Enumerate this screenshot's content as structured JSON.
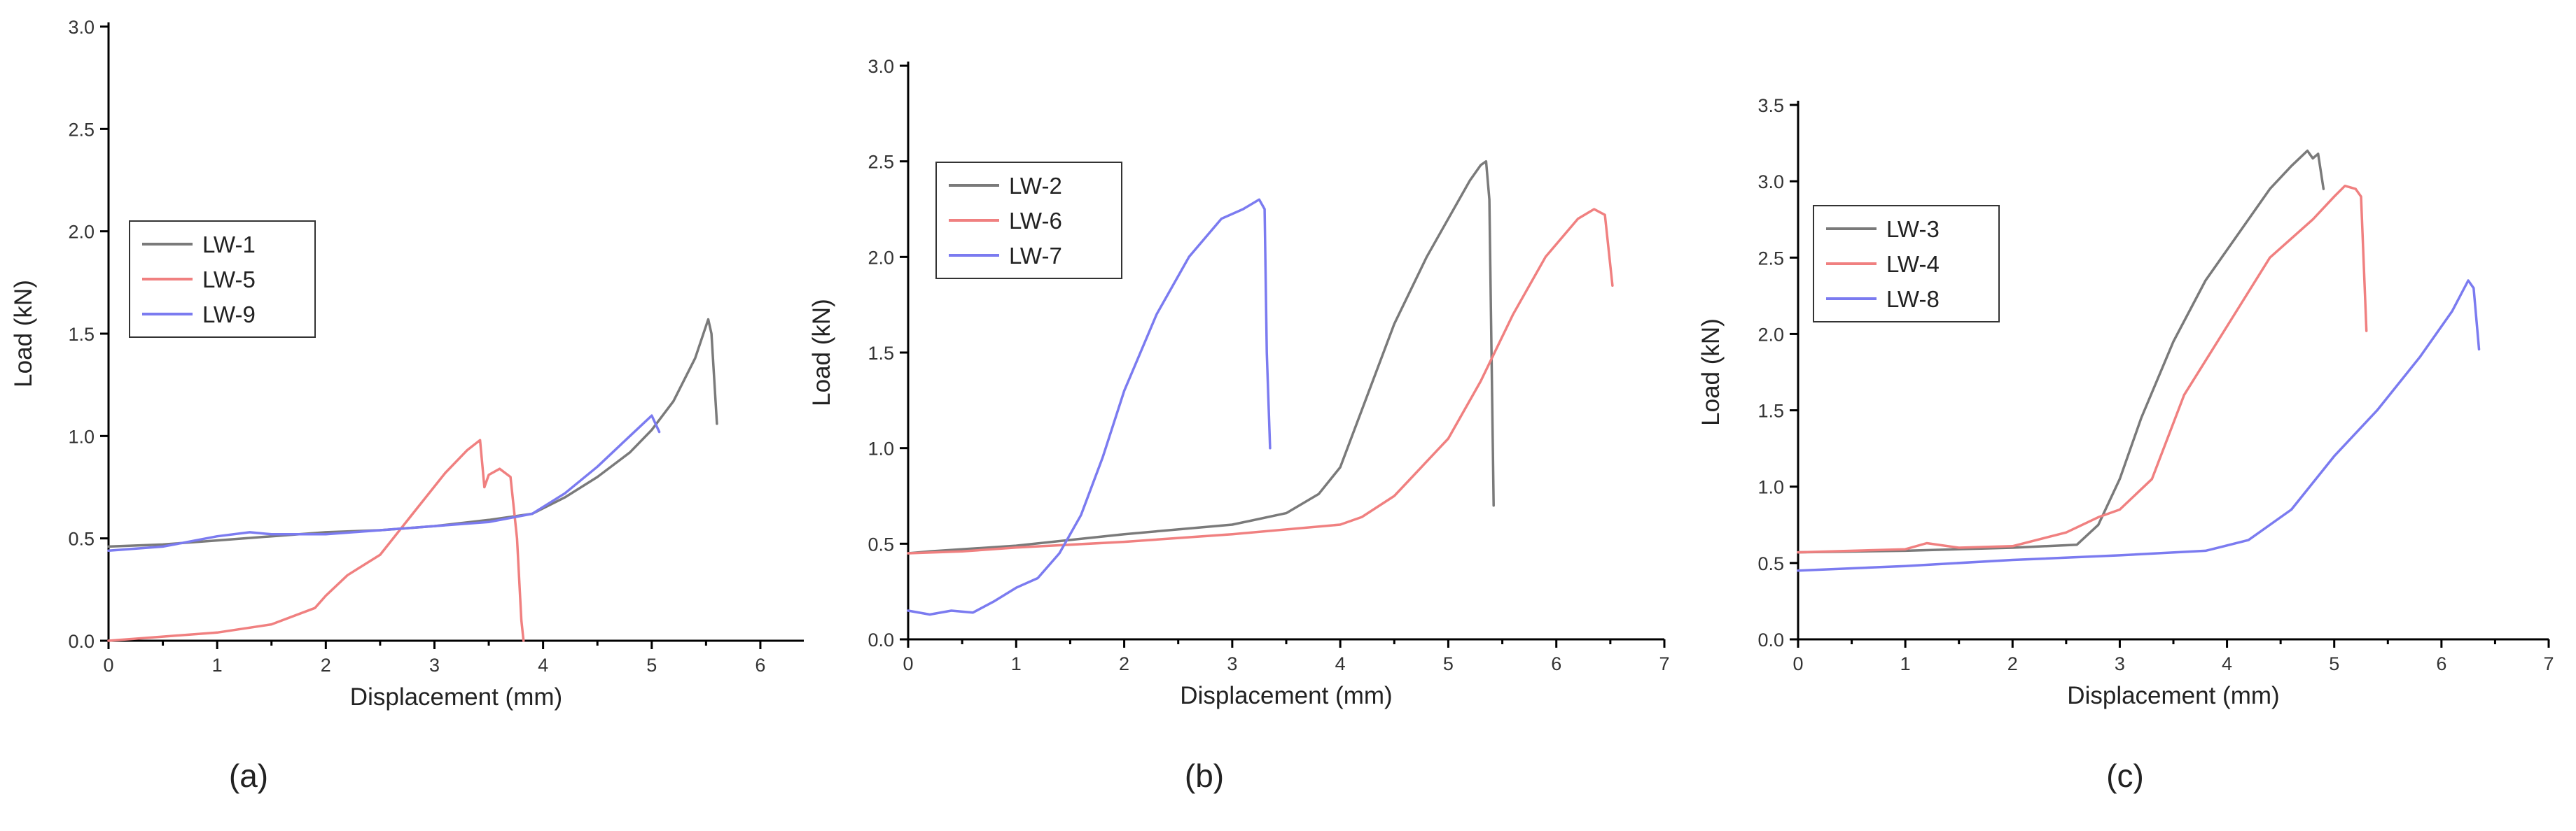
{
  "chart_data": [
    {
      "type": "line",
      "panel_label": "(a)",
      "xlabel": "Displacement (mm)",
      "ylabel": "Load (kN)",
      "xlim": [
        0,
        6.4
      ],
      "ylim": [
        0,
        3.0
      ],
      "x_ticks": [
        "0",
        "1",
        "2",
        "3",
        "4",
        "5",
        "6"
      ],
      "y_ticks": [
        "0.0",
        "0.5",
        "1.0",
        "1.5",
        "2.0",
        "2.5",
        "3.0"
      ],
      "legend_position": "middle-left",
      "series": [
        {
          "name": "LW-1",
          "color": "#7a7a7a",
          "x": [
            0,
            0.5,
            1.0,
            1.5,
            2.0,
            2.5,
            3.0,
            3.5,
            3.9,
            4.2,
            4.5,
            4.8,
            5.0,
            5.2,
            5.4,
            5.52,
            5.55,
            5.6
          ],
          "y": [
            0.46,
            0.47,
            0.49,
            0.51,
            0.53,
            0.54,
            0.56,
            0.59,
            0.62,
            0.7,
            0.8,
            0.92,
            1.03,
            1.17,
            1.38,
            1.57,
            1.5,
            1.06
          ]
        },
        {
          "name": "LW-5",
          "color": "#f08080",
          "x": [
            0,
            0.5,
            1.0,
            1.5,
            1.9,
            2.0,
            2.2,
            2.5,
            2.8,
            3.1,
            3.3,
            3.42,
            3.46,
            3.5,
            3.6,
            3.7,
            3.76,
            3.8,
            3.82
          ],
          "y": [
            0.0,
            0.02,
            0.04,
            0.08,
            0.16,
            0.22,
            0.32,
            0.42,
            0.62,
            0.82,
            0.93,
            0.98,
            0.75,
            0.81,
            0.84,
            0.8,
            0.5,
            0.1,
            0.0
          ]
        },
        {
          "name": "LW-9",
          "color": "#7b7bf0",
          "x": [
            0,
            0.5,
            1.0,
            1.3,
            1.5,
            2.0,
            2.5,
            3.0,
            3.5,
            3.9,
            4.2,
            4.5,
            4.8,
            5.0,
            5.07
          ],
          "y": [
            0.44,
            0.46,
            0.51,
            0.53,
            0.52,
            0.52,
            0.54,
            0.56,
            0.58,
            0.62,
            0.72,
            0.85,
            1.0,
            1.1,
            1.02
          ]
        }
      ]
    },
    {
      "type": "line",
      "panel_label": "(b)",
      "xlabel": "Displacement (mm)",
      "ylabel": "Load (kN)",
      "xlim": [
        0,
        7
      ],
      "ylim": [
        0,
        3.0
      ],
      "x_ticks": [
        "0",
        "1",
        "2",
        "3",
        "4",
        "5",
        "6",
        "7"
      ],
      "y_ticks": [
        "0.0",
        "0.5",
        "1.0",
        "1.5",
        "2.0",
        "2.5",
        "3.0"
      ],
      "legend_position": "top-left",
      "series": [
        {
          "name": "LW-2",
          "color": "#7a7a7a",
          "x": [
            0,
            0.2,
            1.0,
            2.0,
            3.0,
            3.5,
            3.8,
            4.0,
            4.2,
            4.5,
            4.8,
            5.0,
            5.2,
            5.3,
            5.35,
            5.38,
            5.42
          ],
          "y": [
            0.45,
            0.46,
            0.49,
            0.55,
            0.6,
            0.66,
            0.76,
            0.9,
            1.2,
            1.65,
            2.0,
            2.2,
            2.4,
            2.48,
            2.5,
            2.3,
            0.7
          ]
        },
        {
          "name": "LW-6",
          "color": "#f08080",
          "x": [
            0,
            0.5,
            1.0,
            2.0,
            3.0,
            4.0,
            4.2,
            4.5,
            5.0,
            5.3,
            5.6,
            5.9,
            6.2,
            6.35,
            6.45,
            6.52
          ],
          "y": [
            0.45,
            0.46,
            0.48,
            0.51,
            0.55,
            0.6,
            0.64,
            0.75,
            1.05,
            1.35,
            1.7,
            2.0,
            2.2,
            2.25,
            2.22,
            1.85
          ]
        },
        {
          "name": "LW-7",
          "color": "#7b7bf0",
          "x": [
            0,
            0.2,
            0.4,
            0.6,
            0.8,
            1.0,
            1.2,
            1.4,
            1.6,
            1.8,
            2.0,
            2.3,
            2.6,
            2.9,
            3.1,
            3.25,
            3.3,
            3.32,
            3.35
          ],
          "y": [
            0.15,
            0.13,
            0.15,
            0.14,
            0.2,
            0.27,
            0.32,
            0.45,
            0.65,
            0.95,
            1.3,
            1.7,
            2.0,
            2.2,
            2.25,
            2.3,
            2.25,
            1.5,
            1.0
          ]
        }
      ]
    },
    {
      "type": "line",
      "panel_label": "(c)",
      "xlabel": "Displacement (mm)",
      "ylabel": "Load (kN)",
      "xlim": [
        0,
        7
      ],
      "ylim": [
        0,
        3.5
      ],
      "x_ticks": [
        "0",
        "1",
        "2",
        "3",
        "4",
        "5",
        "6",
        "7"
      ],
      "y_ticks": [
        "0.0",
        "0.5",
        "1.0",
        "1.5",
        "2.0",
        "2.5",
        "3.0",
        "3.5"
      ],
      "legend_position": "top-left",
      "series": [
        {
          "name": "LW-3",
          "color": "#7a7a7a",
          "x": [
            0,
            1.0,
            2.0,
            2.6,
            2.8,
            3.0,
            3.2,
            3.5,
            3.8,
            4.1,
            4.4,
            4.6,
            4.75,
            4.8,
            4.85,
            4.9
          ],
          "y": [
            0.57,
            0.58,
            0.6,
            0.62,
            0.75,
            1.05,
            1.45,
            1.95,
            2.35,
            2.65,
            2.95,
            3.1,
            3.2,
            3.15,
            3.18,
            2.95
          ]
        },
        {
          "name": "LW-4",
          "color": "#f08080",
          "x": [
            0,
            1.0,
            1.2,
            1.5,
            2.0,
            2.5,
            2.8,
            3.0,
            3.3,
            3.6,
            4.0,
            4.4,
            4.8,
            5.0,
            5.1,
            5.2,
            5.25,
            5.3
          ],
          "y": [
            0.57,
            0.59,
            0.63,
            0.6,
            0.61,
            0.7,
            0.8,
            0.85,
            1.05,
            1.6,
            2.05,
            2.5,
            2.75,
            2.9,
            2.97,
            2.95,
            2.9,
            2.02
          ]
        },
        {
          "name": "LW-8",
          "color": "#7b7bf0",
          "x": [
            0,
            1.0,
            2.0,
            3.0,
            3.8,
            4.2,
            4.6,
            5.0,
            5.4,
            5.8,
            6.1,
            6.25,
            6.3,
            6.35
          ],
          "y": [
            0.45,
            0.48,
            0.52,
            0.55,
            0.58,
            0.65,
            0.85,
            1.2,
            1.5,
            1.85,
            2.15,
            2.35,
            2.3,
            1.9
          ]
        }
      ]
    }
  ]
}
